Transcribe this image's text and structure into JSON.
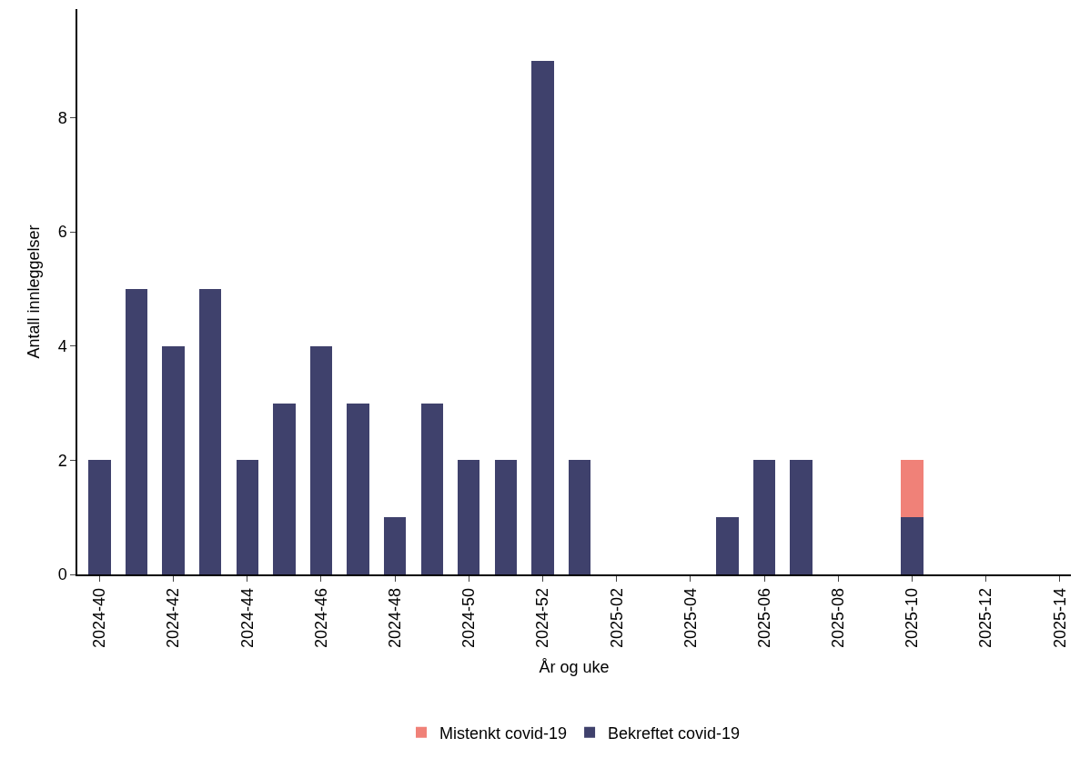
{
  "chart_data": {
    "type": "bar",
    "xlabel": "År og uke",
    "ylabel": "Antall innleggelser",
    "categories": [
      "2024-40",
      null,
      "2024-42",
      null,
      "2024-44",
      null,
      "2024-46",
      null,
      "2024-48",
      null,
      "2024-50",
      null,
      "2024-52",
      null,
      "2025-02",
      null,
      "2025-04",
      null,
      "2025-06",
      null,
      "2025-08",
      null,
      "2025-10",
      null,
      "2025-12",
      null,
      "2025-14"
    ],
    "series": [
      {
        "name": "Bekreftet covid-19",
        "color": "#3f416c",
        "values": [
          2,
          5,
          4,
          5,
          2,
          3,
          4,
          3,
          1,
          3,
          2,
          2,
          9,
          2,
          0,
          0,
          0,
          1,
          2,
          2,
          0,
          0,
          1,
          0,
          0,
          0,
          0
        ]
      },
      {
        "name": "Mistenkt covid-19",
        "color": "#f08178",
        "values": [
          0,
          0,
          0,
          0,
          0,
          0,
          0,
          0,
          0,
          0,
          0,
          0,
          0,
          0,
          0,
          0,
          0,
          0,
          0,
          0,
          0,
          0,
          1,
          0,
          0,
          0,
          0
        ]
      }
    ],
    "stacked": true,
    "ylim": [
      0,
      9.9
    ],
    "yticks": [
      0,
      2,
      4,
      6,
      8
    ],
    "legend": "bottom"
  }
}
